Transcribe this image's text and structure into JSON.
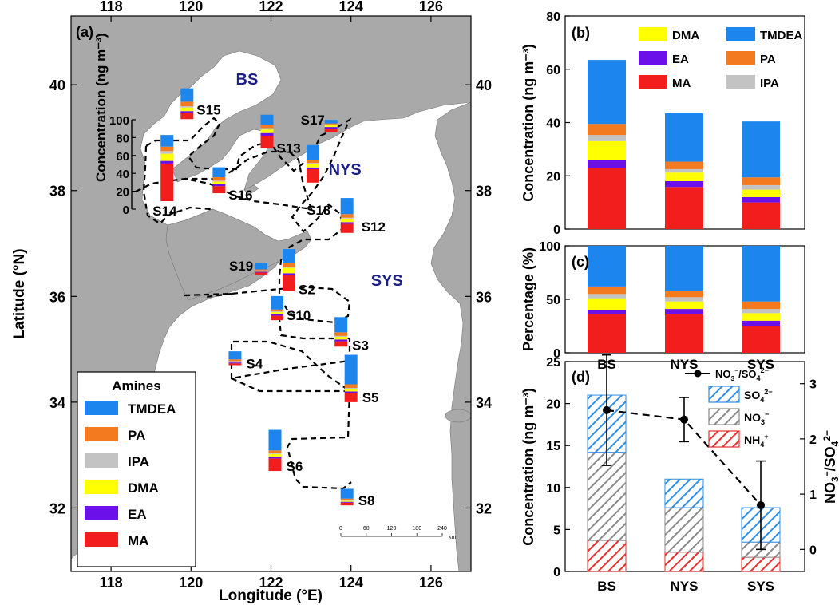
{
  "colors": {
    "TMDEA": "#1c86ee",
    "PA": "#f47a20",
    "IPA": "#c3c3c3",
    "DMA": "#ffff00",
    "EA": "#6b10e8",
    "MA": "#f21d1d",
    "land": "#a9a9a9",
    "sea": "#ffffff",
    "region_label": "#1b1f8a",
    "SO4": "#2f8ee8",
    "NO3": "#8a8a8a",
    "NH4": "#e83030"
  },
  "chart_data": [
    {
      "type": "map",
      "panel_label": "(a)",
      "xlabel": "Longitude (°E)",
      "ylabel": "Latitude (°N)",
      "xlim": [
        117,
        127
      ],
      "ylim": [
        30.8,
        41.3
      ],
      "x_ticks": [
        "118",
        "120",
        "122",
        "124",
        "126"
      ],
      "y_ticks": [
        "32",
        "34",
        "36",
        "38",
        "40"
      ],
      "regions": [
        "BS",
        "NYS",
        "SYS"
      ],
      "legend_title": "Amines",
      "legend_entries": [
        "TMDEA",
        "PA",
        "IPA",
        "DMA",
        "EA",
        "MA"
      ],
      "inset_axis_label": "Concentration (ng m⁻³)",
      "inset_axis_ticks": [
        "0",
        "20",
        "40",
        "60",
        "80",
        "100"
      ],
      "inset_axis_range": [
        0,
        100
      ],
      "scale_bar_ticks": [
        "0",
        "60",
        "120",
        "180",
        "240"
      ],
      "scale_bar_unit": "km",
      "species_order": [
        "MA",
        "EA",
        "DMA",
        "IPA",
        "PA",
        "TMDEA"
      ],
      "stations": [
        {
          "name": "S15",
          "lon": 119.9,
          "lat": 39.35,
          "values": [
            7,
            2,
            4,
            1.5,
            5,
            15
          ]
        },
        {
          "name": "S14",
          "lon": 119.4,
          "lat": 37.8,
          "values": [
            42,
            3,
            8,
            3,
            5,
            13
          ]
        },
        {
          "name": "S16",
          "lon": 120.7,
          "lat": 37.95,
          "values": [
            8,
            2,
            3,
            1,
            4,
            11
          ]
        },
        {
          "name": "S13",
          "lon": 121.9,
          "lat": 38.8,
          "values": [
            14,
            3,
            4,
            1.5,
            4,
            11
          ]
        },
        {
          "name": "S17",
          "lon": 123.5,
          "lat": 39.1,
          "values": [
            4,
            2,
            2,
            1,
            1,
            4
          ]
        },
        {
          "name": "S18",
          "lon": 123.05,
          "lat": 38.15,
          "values": [
            15,
            2,
            4,
            1,
            3,
            17
          ]
        },
        {
          "name": "S12",
          "lon": 123.9,
          "lat": 37.2,
          "values": [
            10,
            2,
            4,
            1,
            4,
            18
          ]
        },
        {
          "name": "S19",
          "lon": 121.75,
          "lat": 36.4,
          "values": [
            3,
            1,
            1,
            0.5,
            1,
            7
          ]
        },
        {
          "name": "S2",
          "lon": 122.45,
          "lat": 36.1,
          "values": [
            18,
            2,
            6,
            1,
            4,
            16
          ]
        },
        {
          "name": "S10",
          "lon": 122.15,
          "lat": 35.55,
          "values": [
            5,
            2,
            2,
            1,
            2,
            15
          ]
        },
        {
          "name": "S3",
          "lon": 123.75,
          "lat": 35.05,
          "values": [
            6,
            2,
            3,
            1,
            4,
            17
          ]
        },
        {
          "name": "S4",
          "lon": 121.1,
          "lat": 34.7,
          "values": [
            2,
            1,
            1,
            0.5,
            2,
            9
          ]
        },
        {
          "name": "S5",
          "lon": 124.0,
          "lat": 34.0,
          "values": [
            10,
            2,
            3,
            1,
            4,
            33
          ]
        },
        {
          "name": "S6",
          "lon": 122.1,
          "lat": 32.7,
          "values": [
            14,
            2,
            3,
            1,
            3,
            23
          ]
        },
        {
          "name": "S8",
          "lon": 123.9,
          "lat": 32.05,
          "values": [
            3,
            1,
            1,
            0.5,
            2,
            11
          ]
        }
      ],
      "region_label_pos": {
        "BS": [
          121.4,
          40.0
        ],
        "NYS": [
          123.85,
          38.3
        ],
        "SYS": [
          124.9,
          36.2
        ]
      }
    },
    {
      "type": "bar",
      "stacked": true,
      "panel_label": "(b)",
      "categories": [
        "BS",
        "NYS",
        "SYS"
      ],
      "ylabel": "Concentration (ng m⁻³)",
      "ylim": [
        0,
        80
      ],
      "y_ticks": [
        "0",
        "20",
        "40",
        "60",
        "80"
      ],
      "legend_entries": [
        "DMA",
        "TMDEA",
        "EA",
        "PA",
        "MA",
        "IPA"
      ],
      "series": [
        {
          "name": "MA",
          "values": [
            23,
            15.8,
            10
          ]
        },
        {
          "name": "EA",
          "values": [
            2.8,
            2.2,
            2
          ]
        },
        {
          "name": "DMA",
          "values": [
            7.2,
            3.2,
            2.8
          ]
        },
        {
          "name": "IPA",
          "values": [
            2.3,
            1.3,
            1.7
          ]
        },
        {
          "name": "PA",
          "values": [
            4.2,
            2.8,
            2.9
          ]
        },
        {
          "name": "TMDEA",
          "values": [
            24,
            18.2,
            21
          ]
        }
      ]
    },
    {
      "type": "bar",
      "stacked": true,
      "panel_label": "(c)",
      "categories": [
        "BS",
        "NYS",
        "SYS"
      ],
      "ylabel": "Percentage (%)",
      "ylim": [
        0,
        100
      ],
      "y_ticks": [
        "0",
        "50",
        "100"
      ],
      "series": [
        {
          "name": "MA",
          "values": [
            36,
            36,
            25
          ]
        },
        {
          "name": "EA",
          "values": [
            4,
            5,
            5
          ]
        },
        {
          "name": "DMA",
          "values": [
            11,
            7,
            7
          ]
        },
        {
          "name": "IPA",
          "values": [
            4,
            4,
            4
          ]
        },
        {
          "name": "PA",
          "values": [
            7,
            6,
            7
          ]
        },
        {
          "name": "TMDEA",
          "values": [
            38,
            42,
            52
          ]
        }
      ]
    },
    {
      "type": "bar",
      "stacked": true,
      "panel_label": "(d)",
      "categories": [
        "BS",
        "NYS",
        "SYS"
      ],
      "ylabel": "Concentration (ng m⁻³)",
      "ylim": [
        0,
        25
      ],
      "y_ticks": [
        "0",
        "5",
        "10",
        "15",
        "20",
        "25"
      ],
      "y2label": "NO3⁻/SO4²⁻",
      "y2lim": [
        -0.4,
        3.4
      ],
      "y2_ticks": [
        "0",
        "1",
        "2",
        "3"
      ],
      "legend_entries": [
        "NO3⁻/SO4²⁻",
        "SO4²⁻",
        "NO3⁻",
        "NH4⁺"
      ],
      "series": [
        {
          "name": "NH4⁺",
          "values": [
            3.7,
            2.3,
            1.7
          ]
        },
        {
          "name": "NO3⁻",
          "values": [
            10.5,
            5.3,
            1.8
          ]
        },
        {
          "name": "SO4²⁻",
          "values": [
            6.8,
            3.4,
            4.1
          ]
        }
      ],
      "ratio_series": {
        "name": "NO3⁻/SO4²⁻",
        "values": [
          2.52,
          2.35,
          0.8
        ],
        "error": [
          1.0,
          0.4,
          0.8
        ]
      }
    }
  ]
}
